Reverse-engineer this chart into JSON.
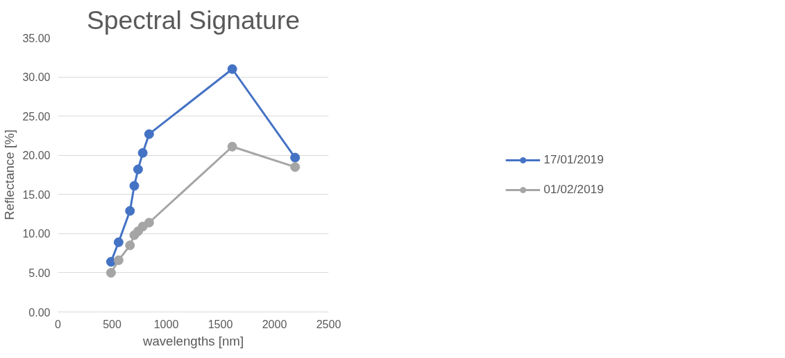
{
  "chart_data": {
    "type": "line",
    "title": "Spectral Signature",
    "xlabel": "wavelengths [nm]",
    "ylabel": "Reflectance [%]",
    "x": [
      490,
      560,
      665,
      705,
      740,
      783,
      842,
      1610,
      2190
    ],
    "series": [
      {
        "name": "17/01/2019",
        "color": "#4472c4",
        "values": [
          6.4,
          8.9,
          12.9,
          16.1,
          18.2,
          20.3,
          22.7,
          31.0,
          19.7
        ]
      },
      {
        "name": "01/02/2019",
        "color": "#a5a5a5",
        "values": [
          5.0,
          6.6,
          8.5,
          9.8,
          10.3,
          10.9,
          11.4,
          21.1,
          18.5
        ]
      }
    ],
    "xlim": [
      0,
      2500
    ],
    "xticks": [
      0,
      500,
      1000,
      1500,
      2000,
      2500
    ],
    "ylim": [
      0,
      35
    ],
    "yticks": [
      {
        "value": 0,
        "label": "0.00"
      },
      {
        "value": 5,
        "label": "5.00"
      },
      {
        "value": 10,
        "label": "10.00"
      },
      {
        "value": 15,
        "label": "15.00"
      },
      {
        "value": 20,
        "label": "20.00"
      },
      {
        "value": 25,
        "label": "25.00"
      },
      {
        "value": 30,
        "label": "30.00"
      },
      {
        "value": 35,
        "label": "35.00"
      }
    ],
    "grid": "y",
    "legend": "right",
    "marker": "circle",
    "line_style": "solid"
  }
}
